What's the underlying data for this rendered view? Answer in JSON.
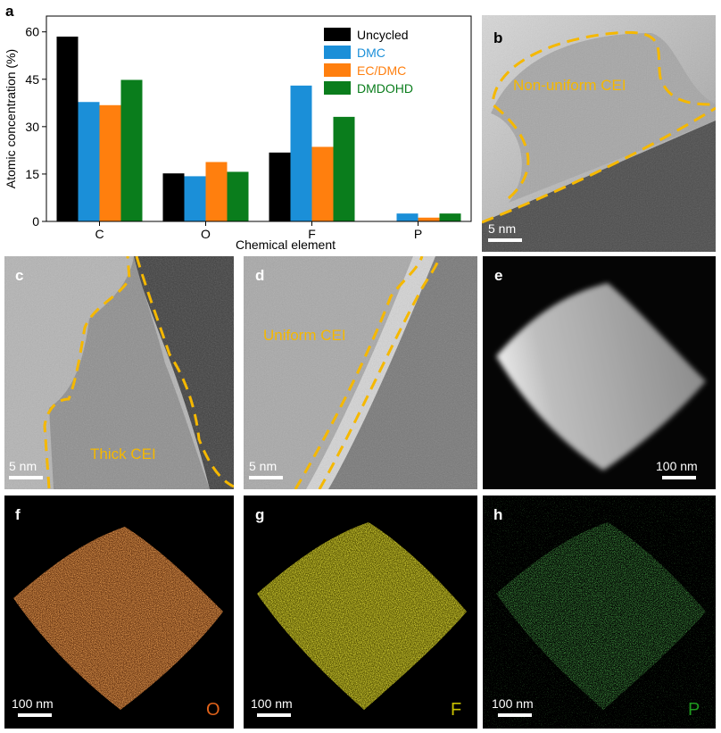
{
  "panel_a": {
    "letter": "a",
    "chart_data": {
      "type": "bar",
      "categories": [
        "C",
        "O",
        "F",
        "P"
      ],
      "series": [
        {
          "name": "Uncycled",
          "values": [
            58.5,
            15.2,
            21.8,
            0
          ],
          "color": "#000000"
        },
        {
          "name": "DMC",
          "values": [
            37.8,
            14.3,
            43.0,
            2.5
          ],
          "color": "#1b8fd8"
        },
        {
          "name": "EC/DMC",
          "values": [
            36.8,
            18.8,
            23.6,
            1.2
          ],
          "color": "#ff7f0e"
        },
        {
          "name": "DMDOHD",
          "values": [
            44.8,
            15.7,
            33.1,
            2.5
          ],
          "color": "#0a7d1c"
        }
      ],
      "xlabel": "Chemical element",
      "ylabel": "Atomic concentration (%)",
      "ylim": [
        0,
        65
      ],
      "yticks": [
        0,
        15,
        30,
        45,
        60
      ],
      "legend": "top-right",
      "grid": false
    }
  },
  "panel_b": {
    "letter": "b",
    "label": "Non-uniform CEI",
    "scale": "5 nm"
  },
  "panel_c": {
    "letter": "c",
    "label": "Thick CEI",
    "scale": "5 nm"
  },
  "panel_d": {
    "letter": "d",
    "label": "Uniform CEI",
    "scale": "5 nm"
  },
  "panel_e": {
    "letter": "e",
    "scale": "100 nm"
  },
  "panel_f": {
    "letter": "f",
    "scale": "100 nm",
    "element": "O",
    "color": "#e0621a"
  },
  "panel_g": {
    "letter": "g",
    "scale": "100 nm",
    "element": "F",
    "color": "#c8c000"
  },
  "panel_h": {
    "letter": "h",
    "scale": "100 nm",
    "element": "P",
    "color": "#1f9a1f"
  }
}
